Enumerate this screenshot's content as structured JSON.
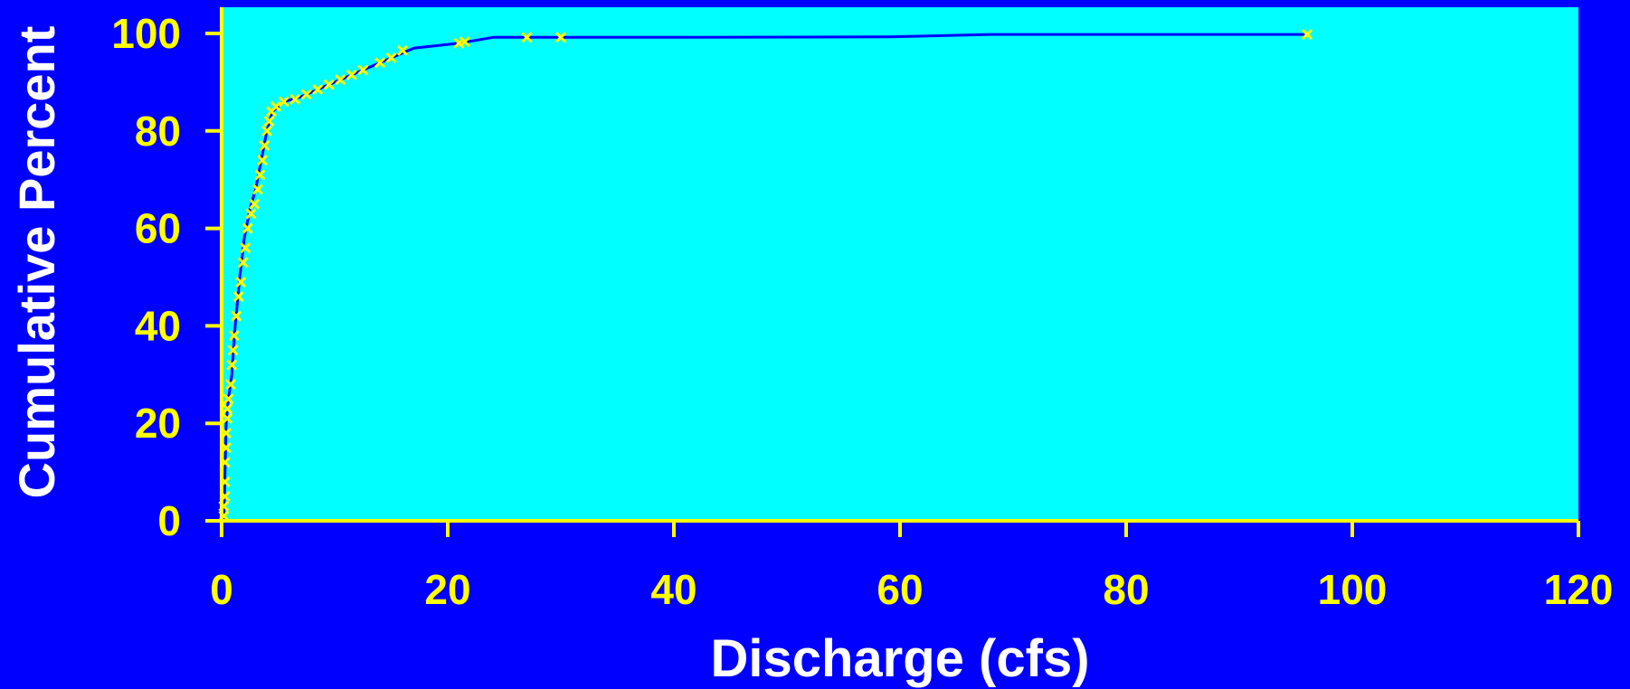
{
  "chart_data": {
    "type": "line",
    "title": "",
    "xlabel": "Discharge (cfs)",
    "ylabel": "Cumulative Percent",
    "xlim": [
      0,
      120
    ],
    "ylim": [
      0,
      100
    ],
    "x_ticks": [
      0,
      20,
      40,
      60,
      80,
      100,
      120
    ],
    "y_ticks": [
      0,
      20,
      40,
      60,
      80,
      100
    ],
    "grid": false,
    "colors": {
      "background": "#0000ff",
      "plot_area": "#00ffff",
      "axis": "#ffff00",
      "line": "#0000ff",
      "markers": "#ffff00"
    },
    "series": [
      {
        "type": "line",
        "points": [
          [
            0.2,
            0
          ],
          [
            0.3,
            10
          ],
          [
            0.4,
            20
          ],
          [
            0.6,
            25
          ],
          [
            0.9,
            30
          ],
          [
            1.2,
            40
          ],
          [
            1.6,
            50
          ],
          [
            2.0,
            58
          ],
          [
            2.5,
            64
          ],
          [
            3.0,
            68
          ],
          [
            3.5,
            74
          ],
          [
            4.0,
            80
          ],
          [
            4.5,
            84
          ],
          [
            5.5,
            86
          ],
          [
            7.0,
            87
          ],
          [
            9.0,
            89
          ],
          [
            11.0,
            91
          ],
          [
            13.0,
            93
          ],
          [
            15.0,
            95
          ],
          [
            17.0,
            97
          ],
          [
            19.0,
            97.5
          ],
          [
            21.0,
            98
          ],
          [
            24.0,
            99.2
          ],
          [
            40.0,
            99.2
          ],
          [
            59.0,
            99.3
          ],
          [
            68.0,
            99.8
          ],
          [
            96.0,
            99.8
          ]
        ]
      },
      {
        "type": "scatter",
        "marker": "x",
        "points": [
          [
            0.2,
            1
          ],
          [
            0.2,
            3
          ],
          [
            0.3,
            5
          ],
          [
            0.3,
            8
          ],
          [
            0.3,
            12
          ],
          [
            0.4,
            15
          ],
          [
            0.4,
            18
          ],
          [
            0.5,
            21
          ],
          [
            0.5,
            23
          ],
          [
            0.6,
            25
          ],
          [
            0.8,
            28
          ],
          [
            0.9,
            32
          ],
          [
            1.0,
            35
          ],
          [
            1.1,
            38
          ],
          [
            1.3,
            42
          ],
          [
            1.5,
            46
          ],
          [
            1.7,
            49
          ],
          [
            1.9,
            53
          ],
          [
            2.1,
            56
          ],
          [
            2.3,
            60
          ],
          [
            2.6,
            63
          ],
          [
            2.9,
            65
          ],
          [
            3.2,
            68
          ],
          [
            3.4,
            71
          ],
          [
            3.6,
            74
          ],
          [
            3.8,
            77
          ],
          [
            4.0,
            80
          ],
          [
            4.2,
            82
          ],
          [
            4.4,
            84
          ],
          [
            4.8,
            85
          ],
          [
            5.5,
            86
          ],
          [
            6.5,
            86.5
          ],
          [
            7.5,
            87.5
          ],
          [
            8.5,
            88.5
          ],
          [
            9.5,
            89.5
          ],
          [
            10.5,
            90.5
          ],
          [
            11.5,
            91.5
          ],
          [
            12.5,
            92.5
          ],
          [
            14.0,
            94
          ],
          [
            15.0,
            95
          ],
          [
            16.0,
            96.5
          ],
          [
            21.0,
            98
          ],
          [
            21.5,
            98.3
          ],
          [
            27.0,
            99.2
          ],
          [
            30.0,
            99.2
          ],
          [
            96.0,
            99.8
          ]
        ]
      }
    ]
  }
}
